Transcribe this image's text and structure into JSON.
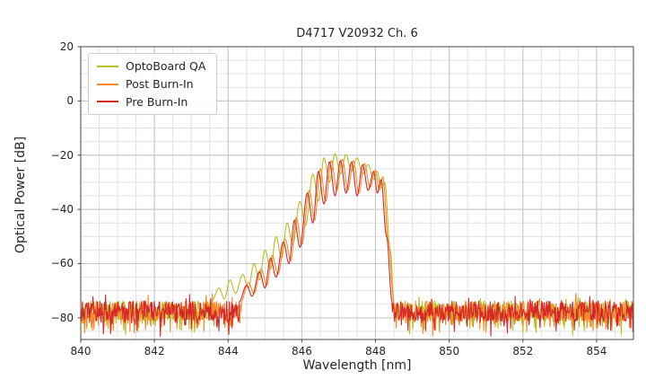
{
  "chart_data": {
    "type": "line",
    "title": "D4717 V20932 Ch. 6",
    "xlabel": "Wavelength [nm]",
    "ylabel": "Optical Power [dB]",
    "xlim": [
      840,
      855
    ],
    "ylim": [
      -88,
      20
    ],
    "xticks": [
      840,
      842,
      844,
      846,
      848,
      850,
      852,
      854
    ],
    "yticks": [
      20,
      0,
      -20,
      -40,
      -60,
      -80
    ],
    "x_minor_step": 0.5,
    "y_minor_step": 5,
    "grid": true,
    "legend_position": "upper-left",
    "noise": {
      "mean": -77.5,
      "amplitude": 6,
      "floor": -87
    },
    "series": [
      {
        "name": "OptoBoard QA",
        "color": "#bcbd22",
        "seed": 11,
        "envelope": [
          [
            843.55,
            -74
          ],
          [
            843.75,
            -69
          ],
          [
            843.9,
            -73
          ],
          [
            844.05,
            -66
          ],
          [
            844.2,
            -71
          ],
          [
            844.4,
            -64
          ],
          [
            844.55,
            -69
          ],
          [
            844.7,
            -60
          ],
          [
            844.85,
            -66
          ],
          [
            845.0,
            -55
          ],
          [
            845.15,
            -62
          ],
          [
            845.3,
            -50
          ],
          [
            845.45,
            -58
          ],
          [
            845.6,
            -45
          ],
          [
            845.75,
            -53
          ],
          [
            845.95,
            -37
          ],
          [
            846.1,
            -46
          ],
          [
            846.3,
            -27
          ],
          [
            846.45,
            -37
          ],
          [
            846.6,
            -21
          ],
          [
            846.75,
            -30
          ],
          [
            846.9,
            -19.5
          ],
          [
            847.05,
            -27
          ],
          [
            847.2,
            -19.8
          ],
          [
            847.35,
            -26
          ],
          [
            847.5,
            -21
          ],
          [
            847.65,
            -27
          ],
          [
            847.8,
            -23.5
          ],
          [
            847.95,
            -29
          ],
          [
            848.05,
            -26
          ],
          [
            848.15,
            -32
          ],
          [
            848.25,
            -30
          ],
          [
            848.4,
            -55
          ],
          [
            848.5,
            -74
          ]
        ]
      },
      {
        "name": "Post Burn-In",
        "color": "#f58a2a",
        "seed": 22,
        "envelope": [
          [
            844.35,
            -74
          ],
          [
            844.55,
            -67
          ],
          [
            844.7,
            -71
          ],
          [
            844.9,
            -62
          ],
          [
            845.05,
            -68
          ],
          [
            845.2,
            -57
          ],
          [
            845.35,
            -64
          ],
          [
            845.55,
            -51
          ],
          [
            845.7,
            -59
          ],
          [
            845.85,
            -43
          ],
          [
            846.0,
            -53
          ],
          [
            846.2,
            -33
          ],
          [
            846.35,
            -44
          ],
          [
            846.5,
            -25
          ],
          [
            846.65,
            -37
          ],
          [
            846.8,
            -22
          ],
          [
            846.95,
            -33
          ],
          [
            847.1,
            -21.5
          ],
          [
            847.25,
            -33
          ],
          [
            847.4,
            -22
          ],
          [
            847.55,
            -34
          ],
          [
            847.7,
            -23
          ],
          [
            847.85,
            -32
          ],
          [
            848.0,
            -25.5
          ],
          [
            848.1,
            -33
          ],
          [
            848.2,
            -28
          ],
          [
            848.35,
            -52
          ],
          [
            848.5,
            -74
          ]
        ]
      },
      {
        "name": "Pre Burn-In",
        "color": "#d62728",
        "seed": 33,
        "envelope": [
          [
            844.3,
            -74
          ],
          [
            844.5,
            -68
          ],
          [
            844.65,
            -72
          ],
          [
            844.85,
            -63
          ],
          [
            845.0,
            -69
          ],
          [
            845.15,
            -58
          ],
          [
            845.3,
            -65
          ],
          [
            845.5,
            -52
          ],
          [
            845.65,
            -60
          ],
          [
            845.8,
            -44
          ],
          [
            845.95,
            -54
          ],
          [
            846.15,
            -34
          ],
          [
            846.3,
            -45
          ],
          [
            846.45,
            -26
          ],
          [
            846.6,
            -38
          ],
          [
            846.75,
            -22.5
          ],
          [
            846.9,
            -35
          ],
          [
            847.05,
            -22
          ],
          [
            847.2,
            -34
          ],
          [
            847.35,
            -22.5
          ],
          [
            847.5,
            -35
          ],
          [
            847.65,
            -23.5
          ],
          [
            847.8,
            -33
          ],
          [
            847.95,
            -26
          ],
          [
            848.05,
            -34
          ],
          [
            848.15,
            -29
          ],
          [
            848.3,
            -50
          ],
          [
            848.45,
            -74
          ]
        ]
      }
    ]
  }
}
